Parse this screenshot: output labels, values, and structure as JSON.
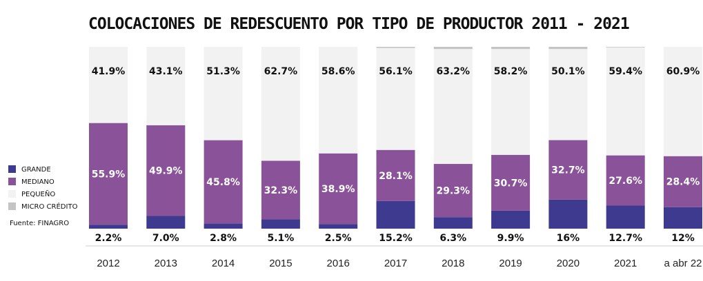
{
  "chart_data": {
    "type": "bar",
    "stacked": true,
    "normalized": true,
    "title": "COLOCACIONES DE REDESCUENTO POR TIPO DE PRODUCTOR 2011 - 2021",
    "source": "Fuente: FINAGRO",
    "categories": [
      "2012",
      "2013",
      "2014",
      "2015",
      "2016",
      "2017",
      "2018",
      "2019",
      "2020",
      "2021",
      "a abr 22"
    ],
    "series": [
      {
        "name": "GRANDE",
        "color": "#3d3a8f",
        "values": [
          2.2,
          7.0,
          2.8,
          5.1,
          2.5,
          15.2,
          6.3,
          9.9,
          16,
          12.7,
          12
        ],
        "labels": [
          "2.2%",
          "7.0%",
          "2.8%",
          "5.1%",
          "2.5%",
          "15.2%",
          "6.3%",
          "9.9%",
          "16%",
          "12.7%",
          "12%"
        ]
      },
      {
        "name": "MEDIANO",
        "color": "#8a5399",
        "values": [
          55.9,
          49.9,
          45.8,
          32.3,
          38.9,
          28.1,
          29.3,
          30.7,
          32.7,
          27.6,
          28.4
        ],
        "labels": [
          "55.9%",
          "49.9%",
          "45.8%",
          "32.3%",
          "38.9%",
          "28.1%",
          "29.3%",
          "30.7%",
          "32.7%",
          "27.6%",
          "28.4%"
        ]
      },
      {
        "name": "PEQUEÑO",
        "color": "#f2f2f2",
        "values": [
          41.9,
          43.1,
          51.3,
          62.7,
          58.6,
          56.1,
          63.2,
          58.2,
          50.1,
          59.4,
          60.9
        ],
        "labels": [
          "41.9%",
          "43.1%",
          "51.3%",
          "62.7%",
          "58.6%",
          "56.1%",
          "63.2%",
          "58.2%",
          "50.1%",
          "59.4%",
          "60.9%"
        ]
      },
      {
        "name": "MICRO CRÉDITO",
        "color": "#c4c4c4",
        "values": [
          0,
          0,
          0,
          0,
          0,
          0.6,
          1.2,
          1.2,
          1.2,
          0.3,
          0
        ],
        "labels": []
      }
    ],
    "ylim": [
      0,
      100
    ],
    "legend": "left",
    "grid": false
  }
}
